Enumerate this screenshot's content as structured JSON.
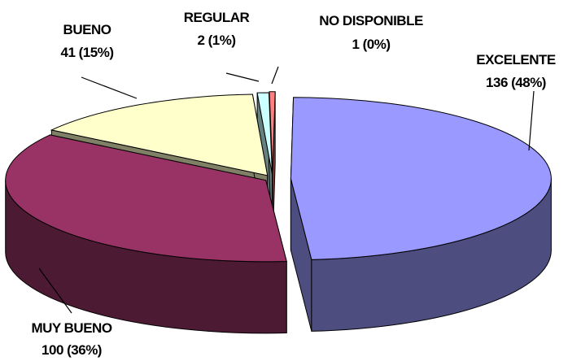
{
  "chart_data": {
    "type": "pie",
    "style": "3d-exploded",
    "title": "",
    "slices": [
      {
        "label": "EXCELENTE",
        "value": 136,
        "pct": "48%",
        "color": "#9999ff",
        "side": "#4d4d80"
      },
      {
        "label": "MUY BUENO",
        "value": 100,
        "pct": "36%",
        "color": "#993366",
        "side": "#4d1a33"
      },
      {
        "label": "BUENO",
        "value": 41,
        "pct": "15%",
        "color": "#ffffcc",
        "side": "#808066"
      },
      {
        "label": "REGULAR",
        "value": 2,
        "pct": "1%",
        "color": "#ccffff",
        "side": "#668080"
      },
      {
        "label": "NO DISPONIBLE",
        "value": 1,
        "pct": "0%",
        "color": "#ff8080",
        "side": "#804040"
      }
    ]
  }
}
